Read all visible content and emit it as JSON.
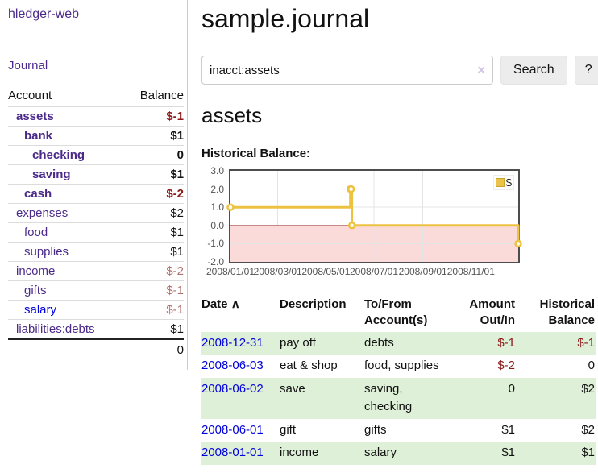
{
  "sidebar": {
    "brand": "hledger-web",
    "journal_label": "Journal",
    "accounts_table": {
      "headers": [
        "Account",
        "Balance"
      ],
      "rows": [
        {
          "account": "assets",
          "indent": 0,
          "bold": true,
          "tone": "negative",
          "balance": "$-1"
        },
        {
          "account": "bank",
          "indent": 1,
          "bold": true,
          "tone": "positive",
          "balance": "$1"
        },
        {
          "account": "checking",
          "indent": 2,
          "bold": true,
          "tone": "zero",
          "balance": "0"
        },
        {
          "account": "saving",
          "indent": 2,
          "bold": true,
          "tone": "positive",
          "balance": "$1"
        },
        {
          "account": "cash",
          "indent": 1,
          "bold": true,
          "tone": "negative",
          "balance": "$-2"
        },
        {
          "account": "expenses",
          "indent": 0,
          "bold": false,
          "tone": "positive",
          "balance": "$2"
        },
        {
          "account": "food",
          "indent": 1,
          "bold": false,
          "tone": "positive",
          "balance": "$1"
        },
        {
          "account": "supplies",
          "indent": 1,
          "bold": false,
          "tone": "positive",
          "balance": "$1"
        },
        {
          "account": "income",
          "indent": 0,
          "bold": false,
          "tone": "negative",
          "balance": "$-2"
        },
        {
          "account": "gifts",
          "indent": 1,
          "bold": false,
          "tone": "negative",
          "balance": "$-1"
        },
        {
          "account": "salary",
          "indent": 1,
          "bold": false,
          "tone": "negative",
          "balance": "$-1",
          "link_color": "blue"
        },
        {
          "account": "liabilities:debts",
          "indent": 0,
          "bold": false,
          "tone": "positive",
          "balance": "$1"
        }
      ],
      "total": "0"
    }
  },
  "header": {
    "title": "sample.journal"
  },
  "search": {
    "value": "inacct:assets",
    "clear_icon": "×",
    "button_label": "Search",
    "help_label": "?"
  },
  "account_page": {
    "title": "assets",
    "chart_label": "Historical Balance:"
  },
  "chart_data": {
    "type": "line",
    "step": true,
    "title": "Historical Balance:",
    "x_range": [
      "2008-01-01",
      "2008-12-31"
    ],
    "ylim": [
      -2,
      3
    ],
    "x_ticks": [
      "2008/01/01",
      "2008/03/01",
      "2008/05/01",
      "2008/07/01",
      "2008/09/01",
      "2008/11/01"
    ],
    "y_ticks": [
      "3.0",
      "2.0",
      "1.0",
      "0.0",
      "-1.0",
      "-2.0"
    ],
    "series": [
      {
        "name": "$",
        "color": "#edc240",
        "points": [
          [
            "2008-01-01",
            1
          ],
          [
            "2008-06-01",
            2
          ],
          [
            "2008-06-02",
            2
          ],
          [
            "2008-06-03",
            0
          ],
          [
            "2008-12-31",
            -1
          ]
        ]
      }
    ],
    "legend": {
      "label": "$",
      "position": "top-right"
    },
    "grid": true,
    "grid_color": "#e4e4e4",
    "zero_line_color": "#8f1010",
    "negative_region_color": "#fbdada",
    "plot_border_color": "#4d4d4d"
  },
  "register": {
    "sort_indicator": "∧",
    "columns": [
      {
        "key": "date",
        "label": "Date",
        "align": "left",
        "sorted": true
      },
      {
        "key": "description",
        "label": "Description",
        "align": "left"
      },
      {
        "key": "accounts",
        "label": "To/From Account(s)",
        "align": "left"
      },
      {
        "key": "amount",
        "label": "Amount Out/In",
        "align": "right"
      },
      {
        "key": "balance",
        "label": "Historical Balance",
        "align": "right"
      }
    ],
    "rows": [
      {
        "date": "2008-12-31",
        "description": "pay off",
        "accounts": "debts",
        "amount": "$-1",
        "amount_negative": true,
        "balance": "$-1",
        "balance_negative": true,
        "shaded": true
      },
      {
        "date": "2008-06-03",
        "description": "eat & shop",
        "accounts": "food, supplies",
        "amount": "$-2",
        "amount_negative": true,
        "balance": "0",
        "balance_negative": false,
        "shaded": false
      },
      {
        "date": "2008-06-02",
        "description": "save",
        "accounts": "saving, checking",
        "amount": "0",
        "amount_negative": false,
        "balance": "$2",
        "balance_negative": false,
        "shaded": true
      },
      {
        "date": "2008-06-01",
        "description": "gift",
        "accounts": "gifts",
        "amount": "$1",
        "amount_negative": false,
        "balance": "$2",
        "balance_negative": false,
        "shaded": false
      },
      {
        "date": "2008-01-01",
        "description": "income",
        "accounts": "salary",
        "amount": "$1",
        "amount_negative": false,
        "balance": "$1",
        "balance_negative": false,
        "shaded": true
      }
    ]
  }
}
